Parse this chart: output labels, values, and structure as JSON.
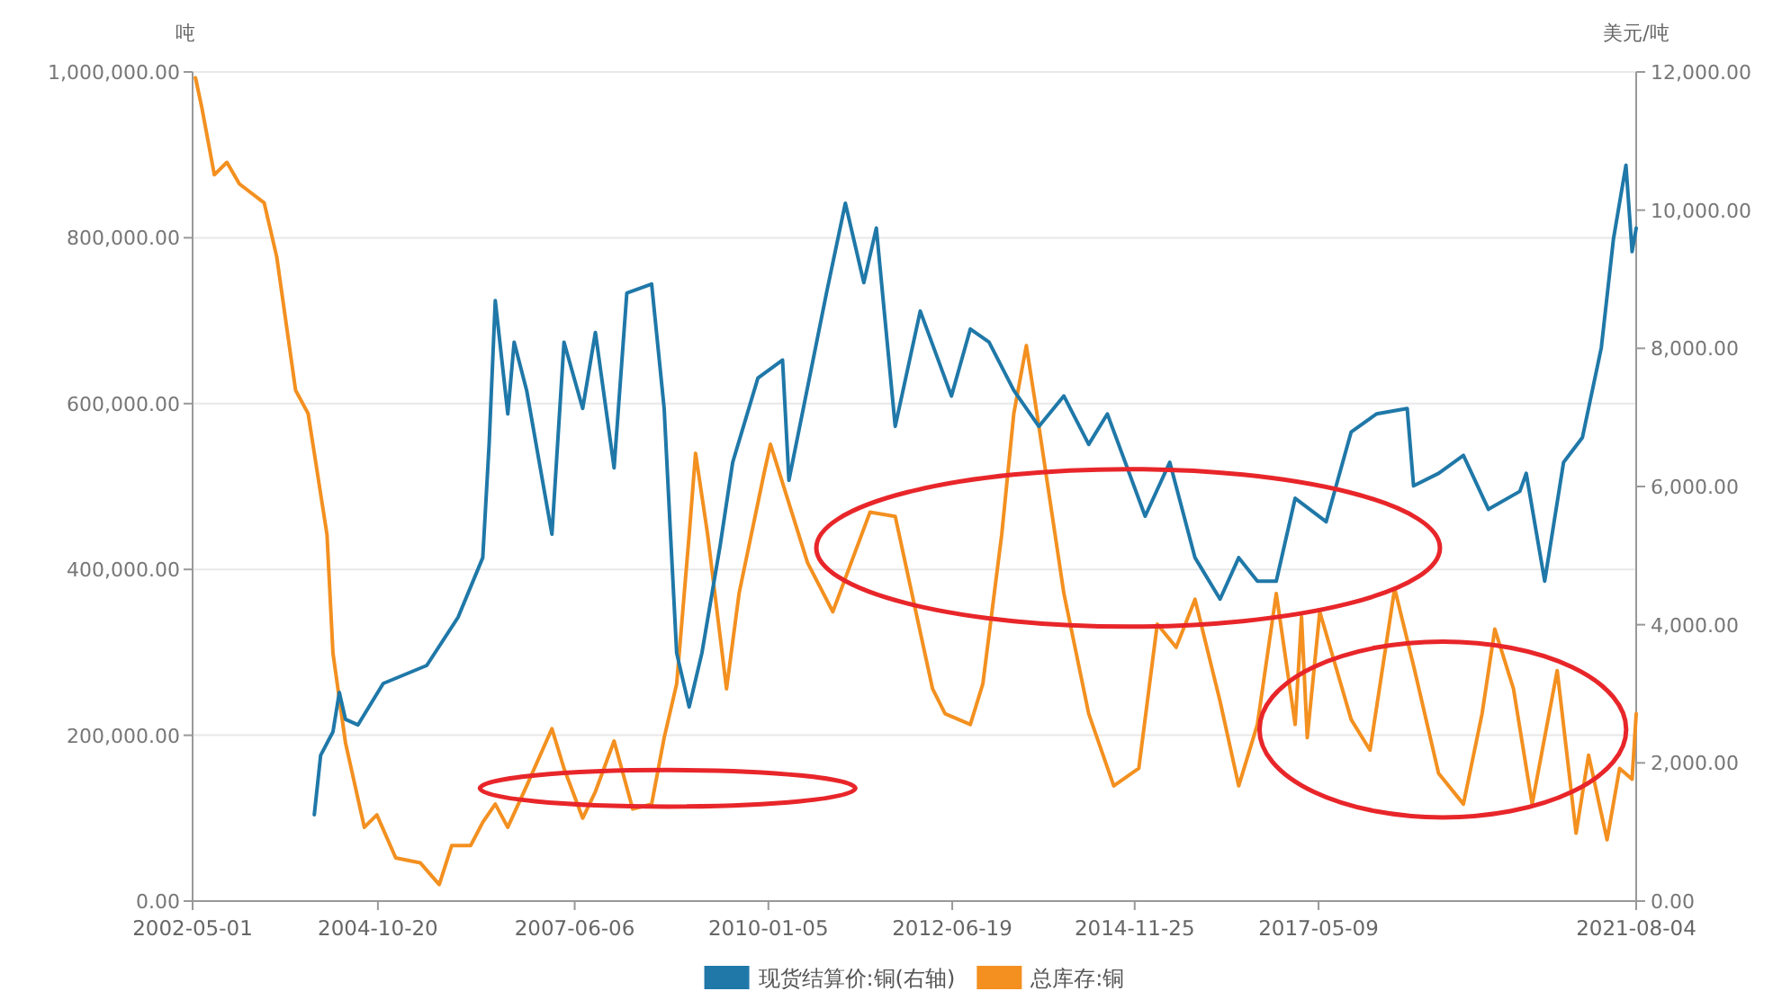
{
  "chart_data": {
    "type": "line",
    "ylabel": "吨",
    "y2label": "美元/吨",
    "grid": "y",
    "legend": "bottom",
    "marker": "none",
    "line_style": "solid",
    "xlim": [
      "2002-05-01",
      "2021-08-04"
    ],
    "xticks": [
      "2002-05-01",
      "2004-10-20",
      "2007-06-06",
      "2010-01-05",
      "2012-06-19",
      "2014-11-25",
      "2017-05-09",
      "2021-08-04"
    ],
    "ylim": [
      0,
      1000000
    ],
    "yticks": [
      {
        "value": 0,
        "label": "0.00"
      },
      {
        "value": 200000,
        "label": "200,000.00"
      },
      {
        "value": 400000,
        "label": "400,000.00"
      },
      {
        "value": 600000,
        "label": "600,000.00"
      },
      {
        "value": 800000,
        "label": "800,000.00"
      },
      {
        "value": 1000000,
        "label": "1,000,000.00"
      }
    ],
    "y2lim": [
      0,
      12000
    ],
    "y2ticks": [
      {
        "value": 0,
        "label": "0.00"
      },
      {
        "value": 2000,
        "label": "2,000.00"
      },
      {
        "value": 4000,
        "label": "4,000.00"
      },
      {
        "value": 6000,
        "label": "6,000.00"
      },
      {
        "value": 8000,
        "label": "8,000.00"
      },
      {
        "value": 10000,
        "label": "10,000.00"
      },
      {
        "value": 12000,
        "label": "12,000.00"
      }
    ],
    "series": [
      {
        "name": "现货结算价:铜(右轴)",
        "color": "#1f78a8",
        "axis": "y2",
        "x": [
          "2003-12",
          "2004-01",
          "2004-03",
          "2004-04",
          "2004-05",
          "2004-07",
          "2004-11",
          "2005-06",
          "2005-11",
          "2006-03",
          "2006-04",
          "2006-05",
          "2006-07",
          "2006-08",
          "2006-10",
          "2007-02",
          "2007-04",
          "2007-07",
          "2007-09",
          "2007-12",
          "2008-02",
          "2008-06",
          "2008-08",
          "2008-09",
          "2008-10",
          "2008-12",
          "2009-02",
          "2009-05",
          "2009-07",
          "2009-11",
          "2010-03",
          "2010-04",
          "2010-10",
          "2011-01",
          "2011-04",
          "2011-06",
          "2011-09",
          "2012-01",
          "2012-06",
          "2012-09",
          "2012-12",
          "2013-04",
          "2013-08",
          "2013-12",
          "2014-04",
          "2014-07",
          "2015-01",
          "2015-05",
          "2015-09",
          "2016-01",
          "2016-04",
          "2016-07",
          "2016-10",
          "2017-01",
          "2017-06",
          "2017-10",
          "2018-02",
          "2018-07",
          "2018-08",
          "2018-12",
          "2019-04",
          "2019-08",
          "2020-01",
          "2020-02",
          "2020-05",
          "2020-08",
          "2020-11",
          "2021-02",
          "2021-04",
          "2021-06",
          "2021-07",
          "2021-08-04"
        ],
        "values": [
          1250,
          2110,
          2450,
          3020,
          2630,
          2550,
          3150,
          3410,
          4110,
          4970,
          6610,
          8690,
          7050,
          8090,
          7390,
          5310,
          8090,
          7130,
          8230,
          6270,
          8800,
          8930,
          7130,
          5310,
          3590,
          2810,
          3590,
          5150,
          6350,
          7570,
          7830,
          6090,
          8800,
          10100,
          8950,
          9740,
          6870,
          8540,
          7310,
          8280,
          8090,
          7390,
          6870,
          7310,
          6610,
          7050,
          5570,
          6350,
          4970,
          4370,
          4970,
          4630,
          4630,
          5830,
          5490,
          6790,
          7050,
          7130,
          6010,
          6190,
          6450,
          5670,
          5930,
          6190,
          4630,
          6350,
          6710,
          8010,
          9580,
          10650,
          9400,
          9740
        ]
      },
      {
        "name": "总库存:铜",
        "color": "#f39020",
        "x": [
          "2002-05",
          "2002-06",
          "2002-08",
          "2002-10",
          "2002-12",
          "2003-04",
          "2003-06",
          "2003-09",
          "2003-11",
          "2004-02",
          "2004-03",
          "2004-05",
          "2004-08",
          "2004-10",
          "2005-01",
          "2005-05",
          "2005-08",
          "2005-10",
          "2006-01",
          "2006-03",
          "2006-05",
          "2006-07",
          "2006-10",
          "2007-02",
          "2007-04",
          "2007-07",
          "2007-09",
          "2007-12",
          "2008-03",
          "2008-06",
          "2008-08",
          "2008-10",
          "2008-12",
          "2009-01",
          "2009-03",
          "2009-06",
          "2009-08",
          "2009-12",
          "2010-01",
          "2010-07",
          "2010-11",
          "2011-05",
          "2011-09",
          "2012-03",
          "2012-05",
          "2012-09",
          "2012-11",
          "2013-02",
          "2013-04",
          "2013-06",
          "2013-08",
          "2013-12",
          "2014-04",
          "2014-08",
          "2014-12",
          "2015-03",
          "2015-06",
          "2015-09",
          "2016-01",
          "2016-04",
          "2016-07",
          "2016-10",
          "2017-01",
          "2017-02",
          "2017-03",
          "2017-05",
          "2017-10",
          "2018-01",
          "2018-05",
          "2018-08",
          "2018-12",
          "2019-04",
          "2019-07",
          "2019-09",
          "2019-12",
          "2020-03",
          "2020-07",
          "2020-10",
          "2020-12",
          "2021-03",
          "2021-05",
          "2021-07",
          "2021-08-04"
        ],
        "values": [
          993000,
          957000,
          876000,
          891000,
          865000,
          842000,
          777000,
          616000,
          588000,
          442000,
          299000,
          191000,
          89000,
          104000,
          52000,
          46000,
          20000,
          67000,
          67000,
          95000,
          117000,
          89000,
          139000,
          208000,
          160000,
          100000,
          132000,
          193000,
          111000,
          117000,
          197000,
          262000,
          442000,
          540000,
          442000,
          256000,
          371000,
          516000,
          551000,
          408000,
          349000,
          469000,
          464000,
          256000,
          226000,
          213000,
          262000,
          442000,
          588000,
          670000,
          573000,
          371000,
          226000,
          139000,
          160000,
          334000,
          306000,
          364000,
          241000,
          139000,
          213000,
          371000,
          213000,
          343000,
          197000,
          349000,
          219000,
          182000,
          377000,
          284000,
          154000,
          117000,
          226000,
          328000,
          256000,
          117000,
          278000,
          82000,
          176000,
          74000,
          160000,
          147000,
          226000
        ]
      }
    ]
  }
}
